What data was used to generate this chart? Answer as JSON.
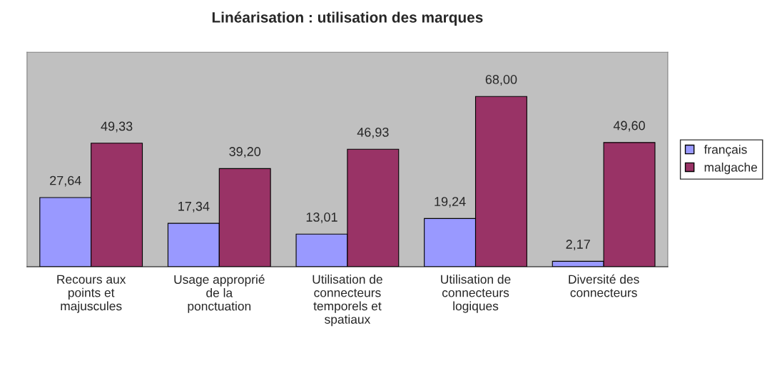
{
  "chart_data": {
    "type": "bar",
    "title": "Linéarisation : utilisation des marques",
    "categories": [
      "Recours aux\npoints et\nmajuscules",
      "Usage approprié\nde la\nponctuation",
      "Utilisation de\nconnecteurs\ntemporels et\nspatiaux",
      "Utilisation de\nconnecteurs\nlogiques",
      "Diversité des\nconnecteurs"
    ],
    "series": [
      {
        "name": "français",
        "color": "#9999ff",
        "values": [
          27.64,
          17.34,
          13.01,
          19.24,
          2.17
        ],
        "value_labels": [
          "27,64",
          "17,34",
          "13,01",
          "19,24",
          "2,17"
        ]
      },
      {
        "name": "malgache",
        "color": "#993366",
        "values": [
          49.33,
          39.2,
          46.93,
          68.0,
          49.6
        ],
        "value_labels": [
          "49,33",
          "39,20",
          "46,93",
          "68,00",
          "49,60"
        ]
      }
    ],
    "legend": "right",
    "grid": false,
    "tick_labels": "x"
  }
}
